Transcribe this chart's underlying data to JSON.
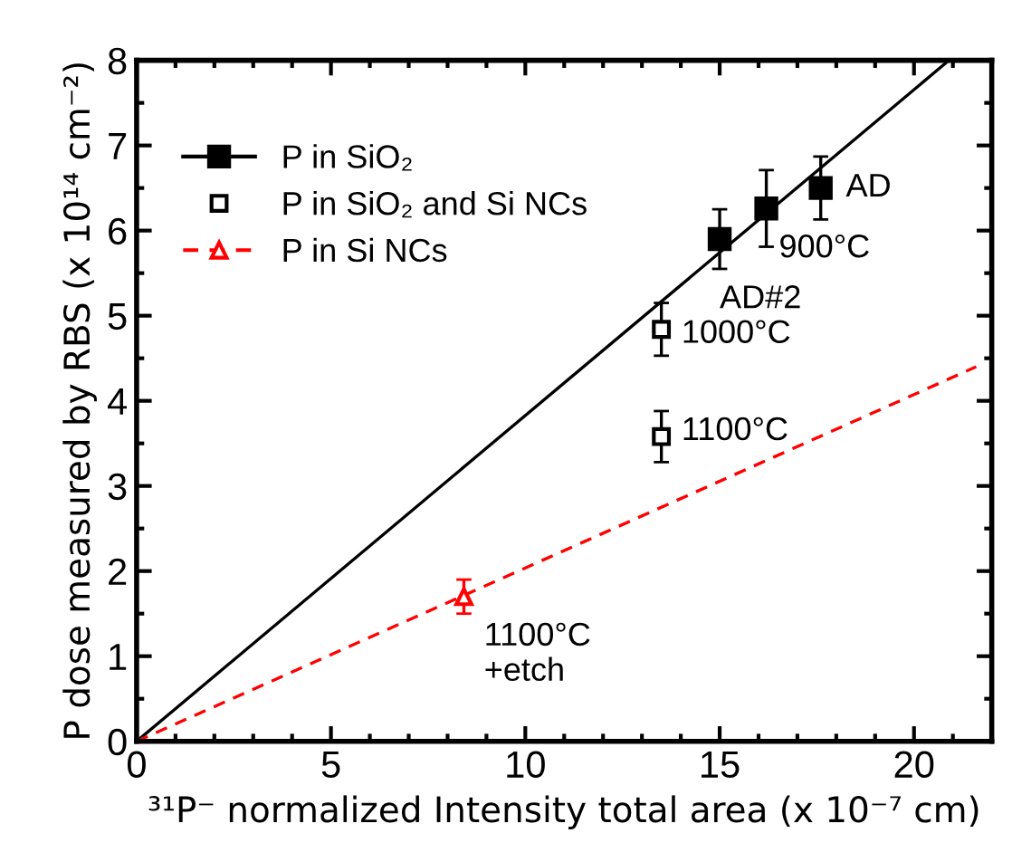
{
  "chart_data": {
    "type": "scatter",
    "xlabel": "³¹P⁻ normalized Intensity total area (x 10⁻⁷ cm)",
    "ylabel": "P dose measured by RBS (x 10¹⁴ cm⁻²)",
    "xlim": [
      0,
      22
    ],
    "xticks": [
      0,
      5,
      10,
      15,
      20
    ],
    "ylim": [
      0,
      8
    ],
    "yticks": [
      0,
      1,
      2,
      3,
      4,
      5,
      6,
      7,
      8
    ],
    "grid": false,
    "legend": "top left",
    "series": [
      {
        "name": "P in SiO₂",
        "color": "#000000",
        "marker": "square",
        "x": [
          15.0,
          16.2,
          17.6
        ],
        "values": [
          5.9,
          6.26,
          6.5
        ],
        "errors": [
          0.35,
          0.45,
          0.37
        ]
      },
      {
        "type": "line",
        "color": "#000000",
        "line_style": "solid",
        "marker": "none",
        "x": [
          0,
          20.9
        ],
        "values": [
          0,
          8.0
        ]
      },
      {
        "name": "P in SiO₂ and Si NCs",
        "color": "#000000",
        "marker": "square",
        "x": [
          13.5,
          13.5
        ],
        "values": [
          4.84,
          3.58
        ],
        "errors": [
          0.31,
          0.3
        ]
      },
      {
        "name": "P in Si NCs",
        "color": "#ff0000",
        "marker": "triangle",
        "x": [
          8.42
        ],
        "values": [
          1.7
        ],
        "errors": [
          0.2
        ]
      },
      {
        "type": "line",
        "color": "#ff0000",
        "line_style": "dashed",
        "marker": "none",
        "x": [
          0,
          21.6
        ],
        "values": [
          0,
          4.4
        ]
      }
    ],
    "annotations": [
      {
        "text": "AD",
        "x": 17.6,
        "y": 6.5
      },
      {
        "text": "900°C",
        "x": 16.2,
        "y": 6.26
      },
      {
        "text": "AD#2",
        "x": 15.0,
        "y": 5.9
      },
      {
        "text": "1000°C",
        "x": 13.5,
        "y": 4.84
      },
      {
        "text": "1100°C",
        "x": 13.5,
        "y": 3.58
      },
      {
        "text": "1100°C\n+etch",
        "x": 8.42,
        "y": 1.7
      }
    ]
  }
}
